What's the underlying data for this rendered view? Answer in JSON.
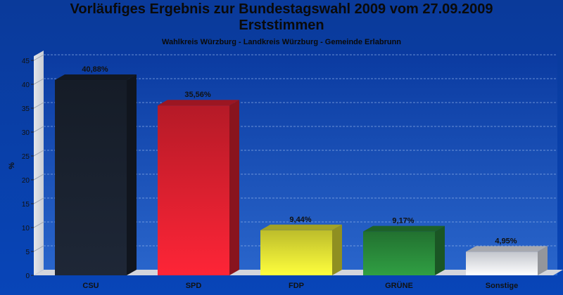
{
  "chart_data": {
    "type": "bar",
    "title": "Vorläufiges Ergebnis zur Bundestagswahl 2009 vom 27.09.2009",
    "title_line2": "Erststimmen",
    "subtitle": "Wahlkreis Würzburg - Landkreis Würzburg - Gemeinde Erlabrunn",
    "ylabel": "%",
    "ylim": [
      0,
      45
    ],
    "yticks": [
      0,
      5,
      10,
      15,
      20,
      25,
      30,
      35,
      40,
      45
    ],
    "grid": true,
    "categories": [
      "CSU",
      "SPD",
      "FDP",
      "GRÜNE",
      "Sonstige"
    ],
    "values": [
      40.88,
      35.56,
      9.44,
      9.17,
      4.95
    ],
    "value_labels": [
      "40,88%",
      "35,56%",
      "9,44%",
      "9,17%",
      "4,95%"
    ],
    "colors": [
      "#1a2230",
      "#dd2030",
      "#e6e635",
      "#2a8a3a",
      "#eef2fa"
    ]
  }
}
